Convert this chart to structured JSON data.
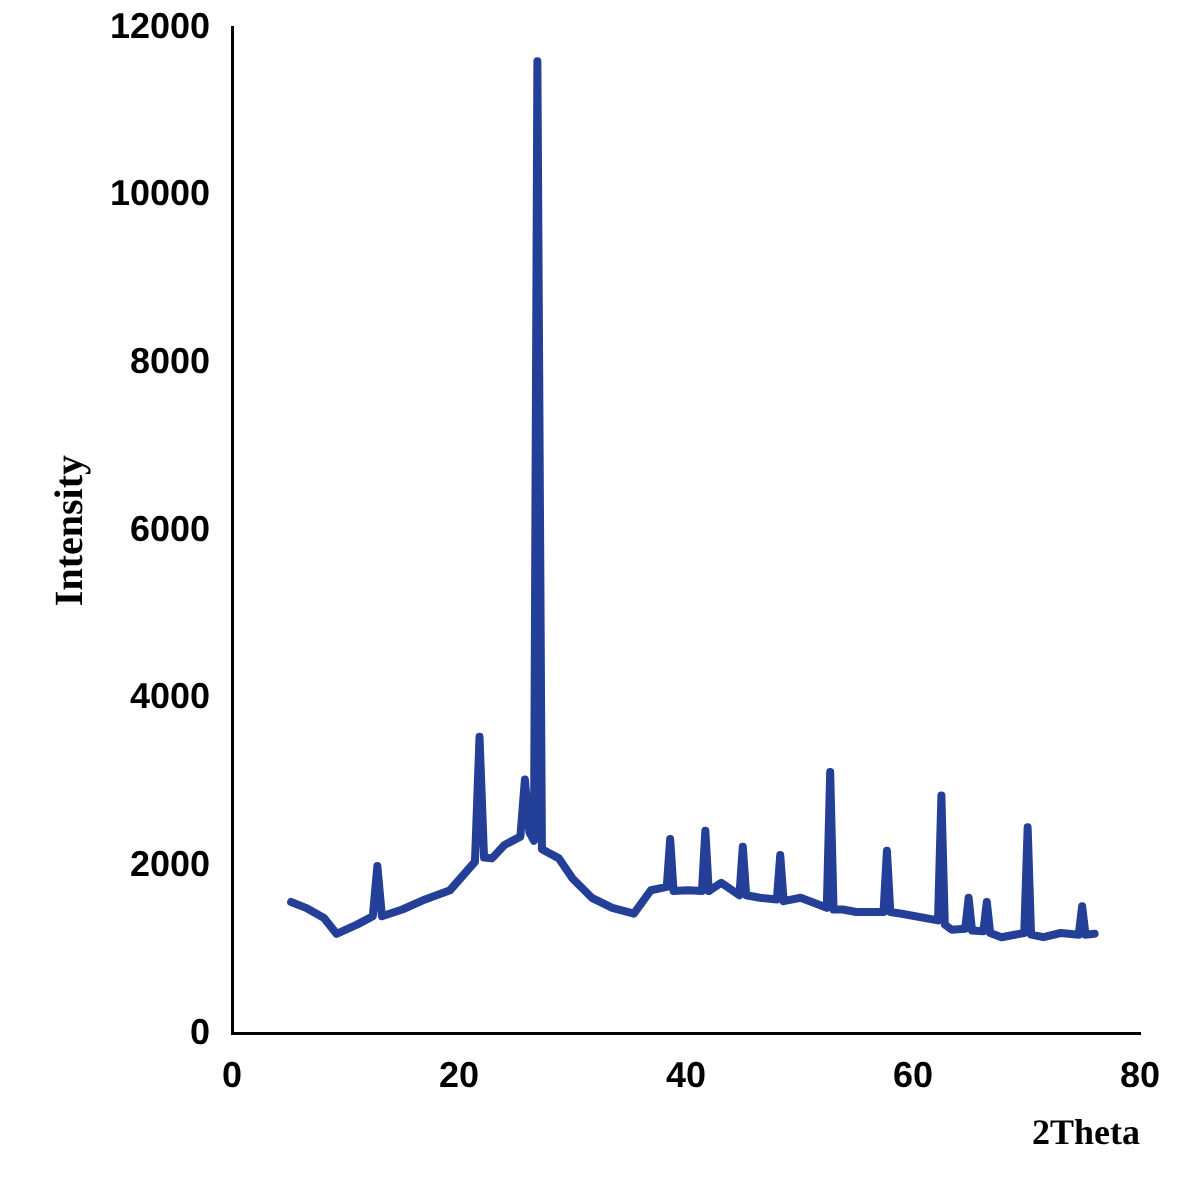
{
  "chart_data": {
    "type": "line",
    "xlabel": "2Theta",
    "ylabel": "Intensity",
    "x": [
      5.2,
      6.5,
      8.1,
      9.2,
      11,
      12.4,
      12.8,
      13.2,
      15,
      17,
      19.2,
      21.4,
      21.8,
      22.2,
      22.9,
      24,
      25.4,
      25.8,
      26.2,
      26.6,
      26.9,
      27.3,
      28.8,
      30,
      31.7,
      33.5,
      35.4,
      36.9,
      38.3,
      38.6,
      38.9,
      40.2,
      41.4,
      41.7,
      42,
      43.1,
      44.7,
      45,
      45.3,
      46.5,
      48,
      48.3,
      48.6,
      50.1,
      52.4,
      52.7,
      53,
      53.8,
      55,
      57.4,
      57.7,
      58,
      59,
      62.2,
      62.5,
      62.8,
      63.4,
      64.6,
      64.9,
      65.2,
      66.2,
      66.5,
      66.8,
      67.8,
      69.8,
      70.1,
      70.4,
      71.5,
      73,
      74.6,
      74.9,
      75.2,
      76
    ],
    "values": [
      1570,
      1500,
      1380,
      1190,
      1300,
      1400,
      2000,
      1400,
      1480,
      1600,
      1710,
      2050,
      3540,
      2100,
      2090,
      2250,
      2350,
      3030,
      2400,
      2300,
      11600,
      2200,
      2090,
      1850,
      1620,
      1500,
      1430,
      1710,
      1750,
      2320,
      1700,
      1710,
      1700,
      2420,
      1700,
      1800,
      1650,
      2230,
      1650,
      1620,
      1600,
      2130,
      1580,
      1620,
      1500,
      3120,
      1480,
      1480,
      1450,
      1450,
      2180,
      1450,
      1430,
      1350,
      2840,
      1300,
      1240,
      1250,
      1620,
      1230,
      1220,
      1570,
      1200,
      1150,
      1200,
      2460,
      1180,
      1150,
      1200,
      1180,
      1520,
      1180,
      1190
    ],
    "color": "#243f97",
    "marker": "none",
    "line_style": "solid",
    "grid": false,
    "legend": false,
    "xlim": [
      0,
      80
    ],
    "xticks": [
      0,
      20,
      40,
      60,
      80
    ],
    "ylim": [
      0,
      12000
    ],
    "yticks": [
      0,
      2000,
      4000,
      6000,
      8000,
      10000,
      12000
    ]
  }
}
